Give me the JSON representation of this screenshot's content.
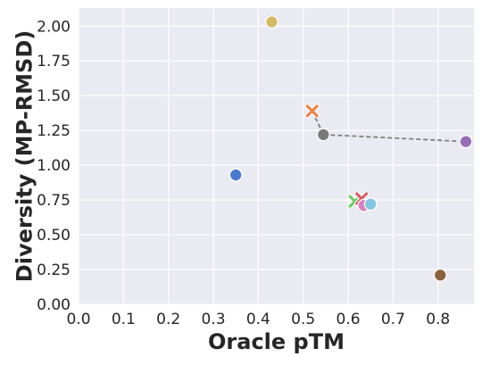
{
  "chart_data": {
    "type": "scatter",
    "title": "",
    "xlabel": "Oracle pTM",
    "ylabel": "Diversity (MP-RMSD)",
    "xlim": [
      0.0,
      0.88
    ],
    "ylim": [
      0.0,
      2.13
    ],
    "xticks": [
      "0.0",
      "0.1",
      "0.2",
      "0.3",
      "0.4",
      "0.5",
      "0.6",
      "0.7",
      "0.8"
    ],
    "yticks": [
      "0.00",
      "0.25",
      "0.50",
      "0.75",
      "1.00",
      "1.25",
      "1.50",
      "1.75",
      "2.00"
    ],
    "grid": true,
    "background": "#eaeaf2",
    "points": [
      {
        "x": 0.35,
        "y": 0.93,
        "marker": "circle",
        "color": "#4878d0"
      },
      {
        "x": 0.43,
        "y": 2.03,
        "marker": "circle",
        "color": "#d5bb67"
      },
      {
        "x": 0.52,
        "y": 1.39,
        "marker": "x",
        "color": "#ee854a"
      },
      {
        "x": 0.545,
        "y": 1.22,
        "marker": "circle",
        "color": "#797979"
      },
      {
        "x": 0.615,
        "y": 0.74,
        "marker": "x",
        "color": "#6acc64"
      },
      {
        "x": 0.63,
        "y": 0.76,
        "marker": "x",
        "color": "#d65f5f"
      },
      {
        "x": 0.635,
        "y": 0.71,
        "marker": "circle",
        "color": "#dc7ec0"
      },
      {
        "x": 0.65,
        "y": 0.72,
        "marker": "circle",
        "color": "#82c6e2"
      },
      {
        "x": 0.805,
        "y": 0.21,
        "marker": "circle",
        "color": "#8c613c"
      },
      {
        "x": 0.862,
        "y": 1.17,
        "marker": "circle",
        "color": "#956cb4"
      }
    ],
    "lines": [
      {
        "from": [
          0.52,
          1.39
        ],
        "to": [
          0.545,
          1.22
        ],
        "style": "dashed",
        "color": "#808080"
      },
      {
        "from": [
          0.545,
          1.22
        ],
        "to": [
          0.862,
          1.17
        ],
        "style": "dashed",
        "color": "#808080"
      }
    ]
  }
}
